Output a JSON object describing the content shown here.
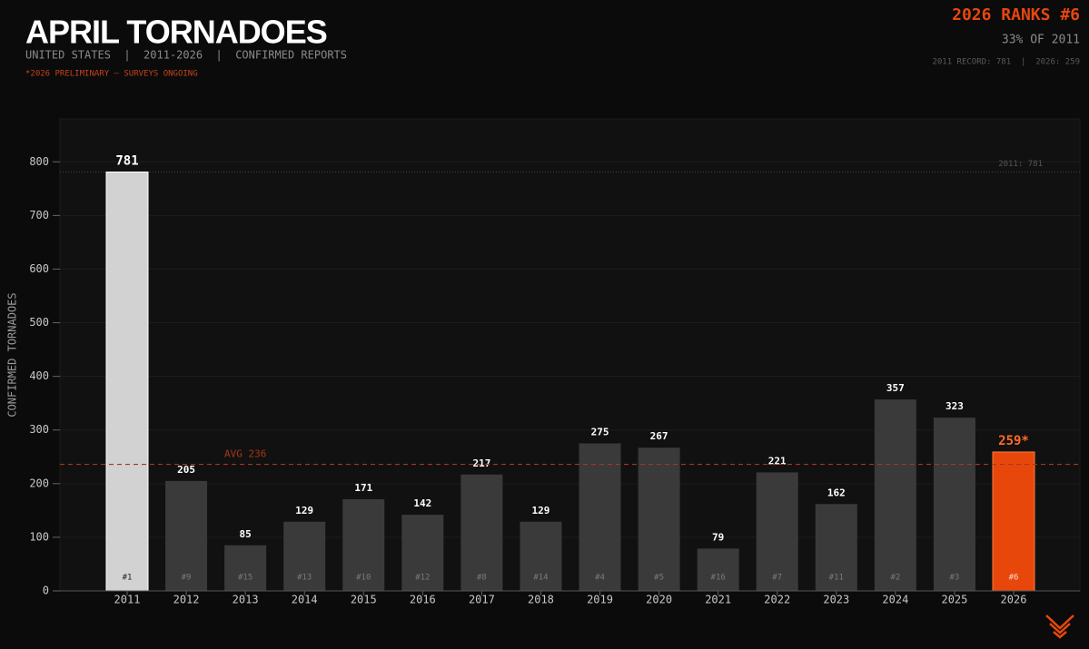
{
  "chart_data": {
    "type": "bar",
    "title": "APRIL TORNADOES",
    "subtitle": "UNITED STATES  |  2011-2026  |  CONFIRMED REPORTS",
    "note": "*2026 PRELIMINARY — SURVEYS ONGOING",
    "headline": "2026 RANKS #6",
    "headline_sub": "33% OF 2011",
    "headline_detail": "2011 RECORD: 781  |  2026: 259",
    "y_label": "CONFIRMED TORNADOES",
    "categories": [
      "2011",
      "2012",
      "2013",
      "2014",
      "2015",
      "2016",
      "2017",
      "2018",
      "2019",
      "2020",
      "2021",
      "2022",
      "2023",
      "2024",
      "2025",
      "2026"
    ],
    "values": [
      781,
      205,
      85,
      129,
      171,
      142,
      217,
      129,
      275,
      267,
      79,
      221,
      162,
      357,
      323,
      259
    ],
    "value_labels": [
      "781",
      "205",
      "85",
      "129",
      "171",
      "142",
      "217",
      "129",
      "275",
      "267",
      "79",
      "221",
      "162",
      "357",
      "323",
      "259*"
    ],
    "ranks": [
      "#1",
      "#9",
      "#15",
      "#13",
      "#10",
      "#12",
      "#8",
      "#14",
      "#4",
      "#5",
      "#16",
      "#7",
      "#11",
      "#2",
      "#3",
      "#6"
    ],
    "colors": [
      "#d2d2d2",
      "#3a3a3a",
      "#3a3a3a",
      "#3a3a3a",
      "#3a3a3a",
      "#3a3a3a",
      "#3a3a3a",
      "#3a3a3a",
      "#3a3a3a",
      "#3a3a3a",
      "#3a3a3a",
      "#3a3a3a",
      "#3a3a3a",
      "#3a3a3a",
      "#3a3a3a",
      "#e8470c"
    ],
    "avg_line": {
      "value": 236,
      "label": "AVG 236"
    },
    "record_line": {
      "value": 781,
      "label": "2011: 781"
    },
    "ylim": [
      0,
      880
    ],
    "yticks": [
      0,
      100,
      200,
      300,
      400,
      500,
      600,
      700,
      800
    ],
    "grid": true
  }
}
